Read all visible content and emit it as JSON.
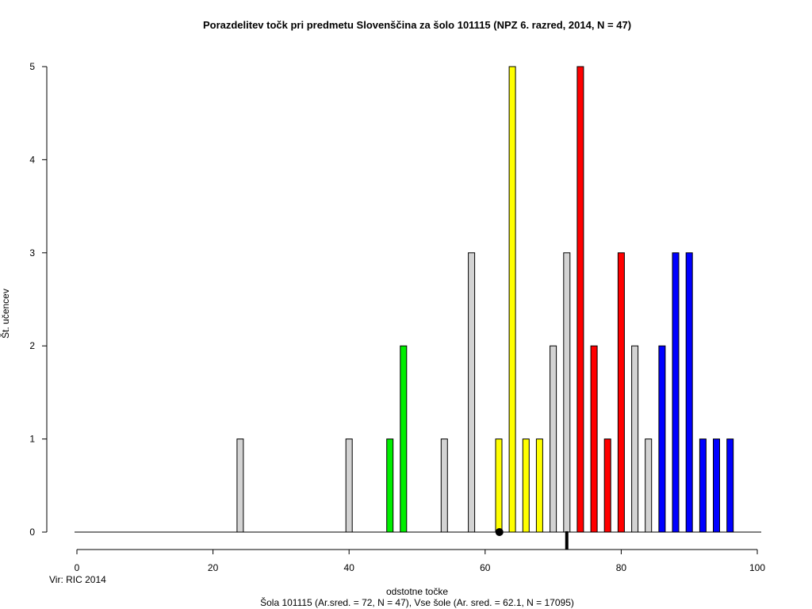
{
  "chart_data": {
    "type": "bar",
    "title": "Porazdelitev točk pri predmetu Slovenščina za šolo 101115 (NPZ 6. razred, 2014, N = 47)",
    "xlabel": "odstotne točke",
    "ylabel": "Št. učencev",
    "subtitle": "Šola 101115 (Ar.sred. = 72, N = 47), Vse šole (Ar. sred. = 62.1, N = 17095)",
    "source_note": "Vir: RIC 2014",
    "xlim": [
      0,
      100
    ],
    "ylim": [
      0,
      5
    ],
    "x_ticks": [
      0,
      20,
      40,
      60,
      80,
      100
    ],
    "y_ticks": [
      0,
      1,
      2,
      3,
      4,
      5
    ],
    "bars": [
      {
        "x": 24,
        "value": 1,
        "color": "#d3d3d3"
      },
      {
        "x": 40,
        "value": 1,
        "color": "#d3d3d3"
      },
      {
        "x": 46,
        "value": 1,
        "color": "#00ee00"
      },
      {
        "x": 48,
        "value": 2,
        "color": "#00ee00"
      },
      {
        "x": 54,
        "value": 1,
        "color": "#d3d3d3"
      },
      {
        "x": 58,
        "value": 3,
        "color": "#d3d3d3"
      },
      {
        "x": 62,
        "value": 1,
        "color": "#ffff00"
      },
      {
        "x": 64,
        "value": 5,
        "color": "#ffff00"
      },
      {
        "x": 66,
        "value": 1,
        "color": "#ffff00"
      },
      {
        "x": 68,
        "value": 1,
        "color": "#ffff00"
      },
      {
        "x": 70,
        "value": 2,
        "color": "#d3d3d3"
      },
      {
        "x": 72,
        "value": 3,
        "color": "#d3d3d3"
      },
      {
        "x": 74,
        "value": 5,
        "color": "#ff0000"
      },
      {
        "x": 76,
        "value": 2,
        "color": "#ff0000"
      },
      {
        "x": 78,
        "value": 1,
        "color": "#ff0000"
      },
      {
        "x": 80,
        "value": 3,
        "color": "#ff0000"
      },
      {
        "x": 82,
        "value": 2,
        "color": "#d3d3d3"
      },
      {
        "x": 84,
        "value": 1,
        "color": "#d3d3d3"
      },
      {
        "x": 86,
        "value": 2,
        "color": "#0000ff"
      },
      {
        "x": 88,
        "value": 3,
        "color": "#0000ff"
      },
      {
        "x": 90,
        "value": 3,
        "color": "#0000ff"
      },
      {
        "x": 92,
        "value": 1,
        "color": "#0000ff"
      },
      {
        "x": 94,
        "value": 1,
        "color": "#0000ff"
      },
      {
        "x": 96,
        "value": 1,
        "color": "#0000ff"
      }
    ],
    "markers": {
      "school_mean": 72,
      "all_schools_mean": 62.1
    },
    "grid": false,
    "legend": "none"
  }
}
